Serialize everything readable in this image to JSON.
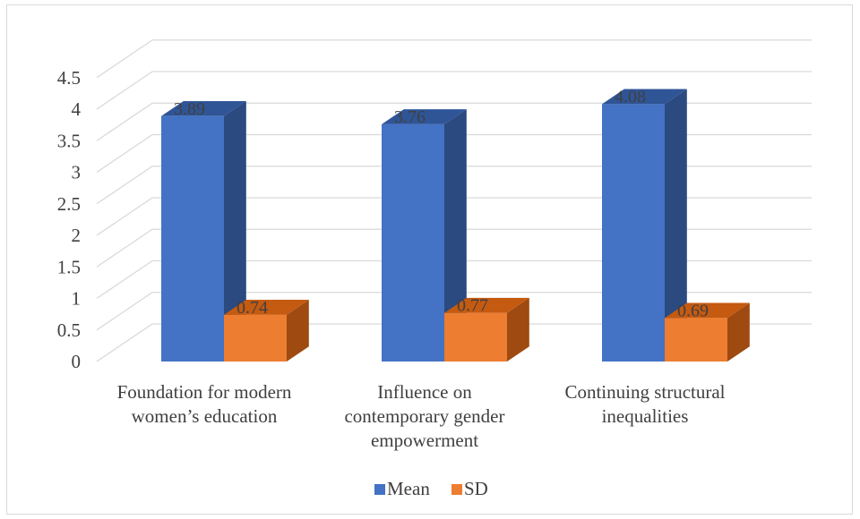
{
  "chart_data": {
    "type": "bar",
    "title": "",
    "xlabel": "",
    "ylabel": "",
    "ylim": [
      0,
      4.5
    ],
    "ytick_step": 0.5,
    "yticks": [
      "0",
      "0.5",
      "1",
      "1.5",
      "2",
      "2.5",
      "3",
      "3.5",
      "4",
      "4.5"
    ],
    "categories": [
      [
        "Foundation for modern",
        "women’s education"
      ],
      [
        "Influence on",
        "contemporary gender",
        "empowerment"
      ],
      [
        "Continuing structural",
        "inequalities"
      ]
    ],
    "series": [
      {
        "name": "Mean",
        "values": [
          3.89,
          3.76,
          4.08
        ],
        "data_labels": [
          "3.89",
          "3.76",
          "4.08"
        ],
        "color": "#4472c4",
        "top_color": "#2f5597",
        "side_color": "#2a4a80"
      },
      {
        "name": "SD",
        "values": [
          0.74,
          0.77,
          0.69
        ],
        "data_labels": [
          "0.74",
          "0.77",
          "0.69"
        ],
        "color": "#ed7d31",
        "top_color": "#c55a11",
        "side_color": "#9e4a10"
      }
    ],
    "grid": true,
    "legend_position": "bottom",
    "style": "3d-clustered-column"
  }
}
